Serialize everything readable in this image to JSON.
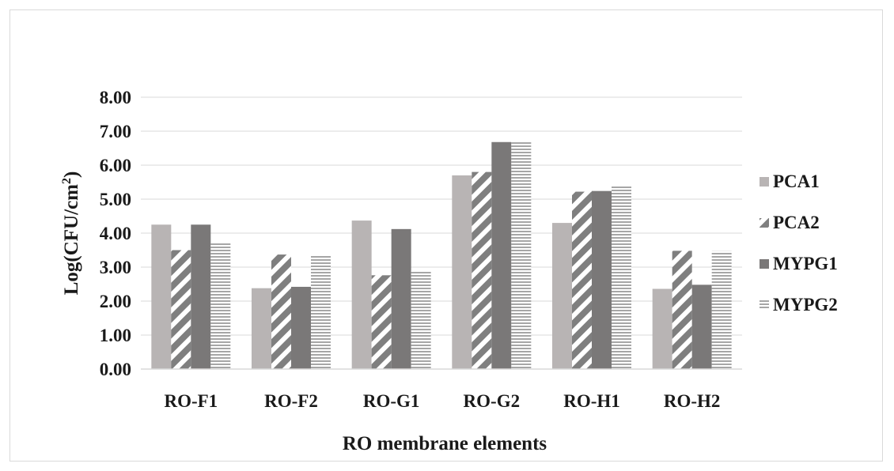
{
  "chart_data": {
    "type": "bar",
    "title": "",
    "xlabel": "RO membrane elements",
    "ylabel_main": "Log(CFU/cm",
    "ylabel_sup": "2",
    "ylabel_end": ")",
    "ylim": [
      0,
      8
    ],
    "ytick_step": 1,
    "ytick_labels": [
      "0.00",
      "1.00",
      "2.00",
      "3.00",
      "4.00",
      "5.00",
      "6.00",
      "7.00",
      "8.00"
    ],
    "grid": true,
    "legend_position": "right",
    "categories": [
      "RO-F1",
      "RO-F2",
      "RO-G1",
      "RO-G2",
      "RO-H1",
      "RO-H2"
    ],
    "series": [
      {
        "name": "PCA1",
        "values": [
          4.25,
          2.38,
          4.37,
          5.7,
          4.3,
          2.36
        ],
        "color": "#b8b4b4",
        "pattern": "solid"
      },
      {
        "name": "PCA2",
        "values": [
          3.5,
          3.37,
          2.76,
          5.8,
          5.22,
          3.48
        ],
        "color": "#7f7f7f",
        "pattern": "diagonal"
      },
      {
        "name": "MYPG1",
        "values": [
          4.25,
          2.42,
          4.12,
          6.68,
          5.24,
          2.48
        ],
        "color": "#7a7878",
        "pattern": "solid"
      },
      {
        "name": "MYPG2",
        "values": [
          3.7,
          3.33,
          2.9,
          6.7,
          5.38,
          3.47
        ],
        "color": "#a6a6a6",
        "pattern": "horizontal"
      }
    ]
  }
}
